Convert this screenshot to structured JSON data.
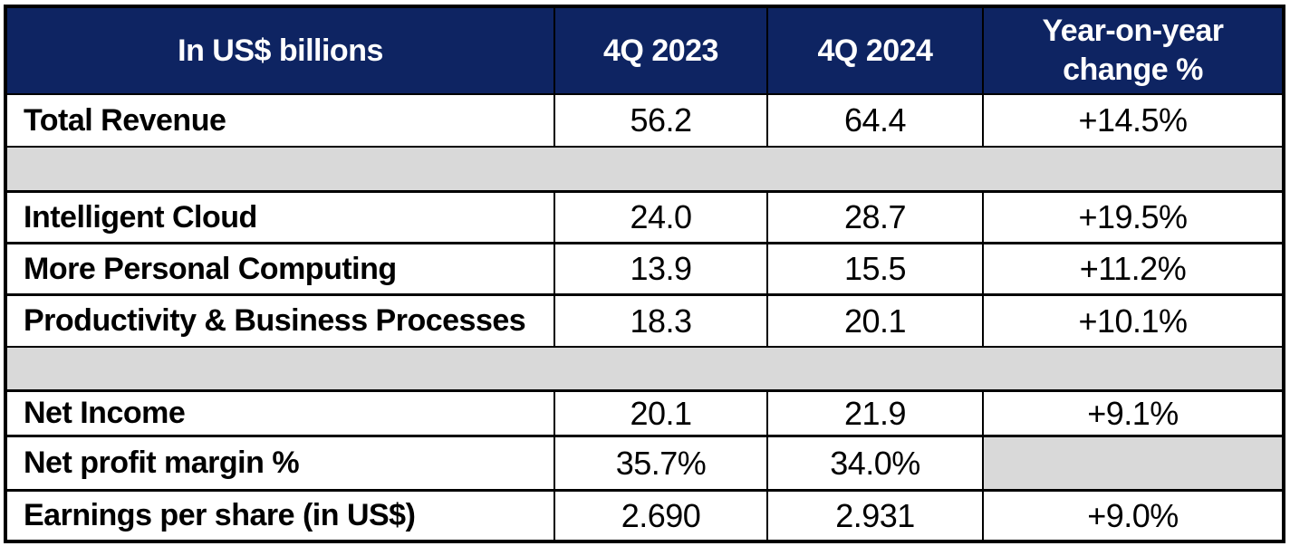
{
  "colors": {
    "header_bg": "#0E2462",
    "header_text": "#FFFFFF",
    "spacer_bg": "#D9D9D9",
    "border": "#000000",
    "body_text": "#000000"
  },
  "table": {
    "header": {
      "metric": "In US$ billions",
      "q4_2023": "4Q 2023",
      "q4_2024": "4Q 2024",
      "yoy": "Year-on-year change %"
    },
    "rows": [
      {
        "label": "Total Revenue",
        "q4_2023": "56.2",
        "q4_2024": "64.4",
        "yoy": "+14.5%"
      },
      {
        "label": "Intelligent Cloud",
        "q4_2023": "24.0",
        "q4_2024": "28.7",
        "yoy": "+19.5%"
      },
      {
        "label": "More Personal Computing",
        "q4_2023": "13.9",
        "q4_2024": "15.5",
        "yoy": "+11.2%"
      },
      {
        "label": "Productivity & Business Processes",
        "q4_2023": "18.3",
        "q4_2024": "20.1",
        "yoy": "+10.1%"
      },
      {
        "label": "Net Income",
        "q4_2023": "20.1",
        "q4_2024": "21.9",
        "yoy": "+9.1%"
      },
      {
        "label": "Net profit margin %",
        "q4_2023": "35.7%",
        "q4_2024": "34.0%",
        "yoy": null
      },
      {
        "label": "Earnings per share (in US$)",
        "q4_2023": "2.690",
        "q4_2024": "2.931",
        "yoy": "+9.0%"
      }
    ]
  },
  "chart_data": {
    "type": "table",
    "title": "In US$ billions",
    "units": "US$ billions",
    "columns": [
      "In US$ billions",
      "4Q 2023",
      "4Q 2024",
      "Year-on-year change %"
    ],
    "rows": [
      {
        "metric": "Total Revenue",
        "q4_2023": 56.2,
        "q4_2024": 64.4,
        "yoy_change_pct": 14.5
      },
      {
        "metric": "Intelligent Cloud",
        "q4_2023": 24.0,
        "q4_2024": 28.7,
        "yoy_change_pct": 19.5
      },
      {
        "metric": "More Personal Computing",
        "q4_2023": 13.9,
        "q4_2024": 15.5,
        "yoy_change_pct": 11.2
      },
      {
        "metric": "Productivity & Business Processes",
        "q4_2023": 18.3,
        "q4_2024": 20.1,
        "yoy_change_pct": 10.1
      },
      {
        "metric": "Net Income",
        "q4_2023": 20.1,
        "q4_2024": 21.9,
        "yoy_change_pct": 9.1
      },
      {
        "metric": "Net profit margin %",
        "q4_2023_pct": 35.7,
        "q4_2024_pct": 34.0,
        "yoy_change_pct": null
      },
      {
        "metric": "Earnings per share (in US$)",
        "q4_2023": 2.69,
        "q4_2024": 2.931,
        "yoy_change_pct": 9.0
      }
    ],
    "layout_hints": {
      "spacer_rows_after": [
        "Total Revenue",
        "Productivity & Business Processes"
      ],
      "empty_cells": [
        {
          "row": "Net profit margin %",
          "column": "Year-on-year change %"
        }
      ]
    }
  }
}
